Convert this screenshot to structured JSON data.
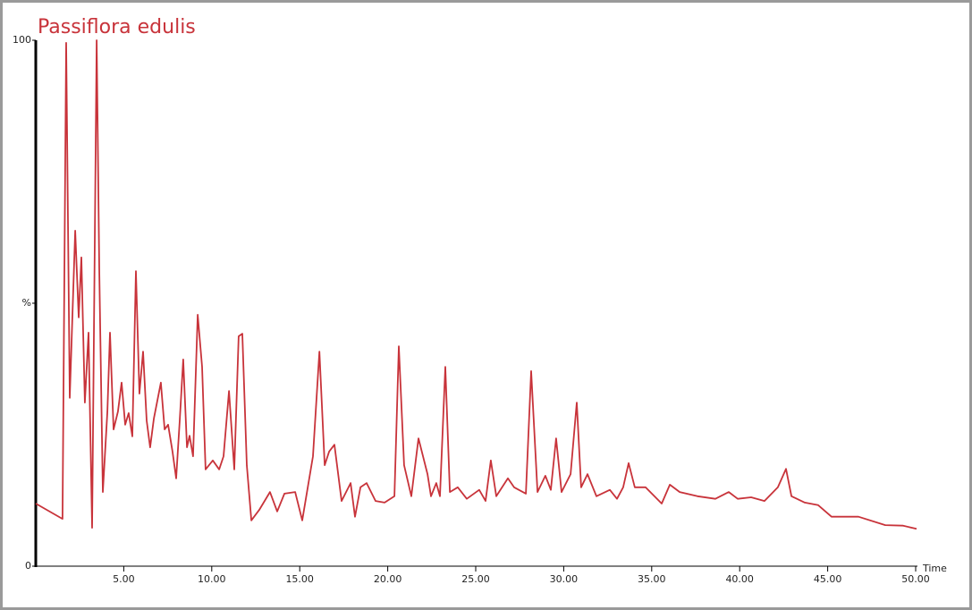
{
  "chart_data": {
    "type": "line",
    "title": "Passiflora edulis",
    "xlabel": "Time",
    "color": "#c8333a",
    "xlim": [
      0,
      50
    ],
    "ylim": [
      0,
      100
    ],
    "xticks": [
      {
        "value": 5,
        "label": "5.00"
      },
      {
        "value": 10,
        "label": "10.00"
      },
      {
        "value": 15,
        "label": "15.00"
      },
      {
        "value": 20,
        "label": "20.00"
      },
      {
        "value": 25,
        "label": "25.00"
      },
      {
        "value": 30,
        "label": "30.00"
      },
      {
        "value": 35,
        "label": "35.00"
      },
      {
        "value": 40,
        "label": "40.00"
      },
      {
        "value": 45,
        "label": "45.00"
      },
      {
        "value": 50,
        "label": "50.00"
      }
    ],
    "yticks": [
      0,
      {
        "value": 50,
        "label": "%"
      },
      100
    ],
    "x": [
      0,
      1.52,
      1.73,
      1.93,
      2.24,
      2.44,
      2.59,
      2.79,
      3.0,
      3.2,
      3.46,
      3.61,
      3.81,
      4.07,
      4.22,
      4.42,
      4.67,
      4.88,
      5.08,
      5.28,
      5.49,
      5.69,
      5.89,
      6.1,
      6.3,
      6.5,
      6.71,
      7.11,
      7.32,
      7.52,
      7.77,
      7.98,
      8.18,
      8.38,
      8.59,
      8.74,
      8.94,
      9.2,
      9.45,
      9.65,
      10.06,
      10.42,
      10.67,
      10.98,
      11.28,
      11.53,
      11.74,
      11.99,
      12.25,
      12.7,
      13.31,
      13.72,
      14.13,
      14.74,
      15.14,
      15.75,
      16.12,
      16.42,
      16.67,
      16.97,
      17.38,
      17.89,
      18.14,
      18.45,
      18.8,
      19.31,
      19.82,
      20.38,
      20.63,
      20.93,
      21.34,
      21.75,
      22.26,
      22.46,
      22.76,
      22.97,
      23.27,
      23.53,
      23.98,
      24.49,
      25.2,
      25.56,
      25.86,
      26.17,
      26.83,
      27.18,
      27.85,
      28.15,
      28.51,
      28.96,
      29.27,
      29.57,
      29.88,
      30.39,
      30.74,
      30.99,
      31.35,
      31.86,
      32.62,
      33.03,
      33.38,
      33.69,
      34.04,
      34.65,
      35.57,
      36.03,
      36.59,
      37.6,
      38.62,
      39.38,
      39.89,
      40.65,
      41.41,
      42.17,
      42.63,
      42.94,
      43.7,
      44.46,
      45.22,
      46.75,
      48.27,
      49.29,
      50.05
    ],
    "values": [
      11.9,
      9.0,
      99.5,
      32,
      63.8,
      47.3,
      58.7,
      31.1,
      44.4,
      7.3,
      100,
      56.6,
      14.1,
      29.4,
      44.4,
      26,
      29.4,
      34.9,
      26.9,
      29.1,
      24.7,
      56.1,
      32.8,
      40.8,
      27.7,
      22.6,
      28.1,
      34.9,
      26,
      26.9,
      21.8,
      16.7,
      27.7,
      39.3,
      22.6,
      24.8,
      20.9,
      47.8,
      37.9,
      18.4,
      20.1,
      18.4,
      20.9,
      33.3,
      18.4,
      43.7,
      44.2,
      19.2,
      8.7,
      10.7,
      14.1,
      10.4,
      13.8,
      14.1,
      8.7,
      20.9,
      40.8,
      19.2,
      21.8,
      23.1,
      12.4,
      15.8,
      9.4,
      15,
      15.8,
      12.4,
      12.1,
      13.3,
      41.8,
      19.2,
      13.3,
      24.3,
      17.5,
      13.3,
      15.8,
      13.3,
      37.9,
      14.1,
      15,
      12.8,
      14.5,
      12.4,
      20.1,
      13.3,
      16.7,
      15,
      13.8,
      37.1,
      14.1,
      17.2,
      14.5,
      24.3,
      14.1,
      17.5,
      31.1,
      15,
      17.5,
      13.3,
      14.5,
      12.8,
      15,
      19.6,
      15,
      15,
      11.9,
      15.5,
      14.1,
      13.3,
      12.8,
      14.1,
      12.8,
      13.1,
      12.4,
      15,
      18.5,
      13.3,
      12.1,
      11.6,
      9.4,
      9.4,
      7.8,
      7.7,
      7.1
    ]
  }
}
